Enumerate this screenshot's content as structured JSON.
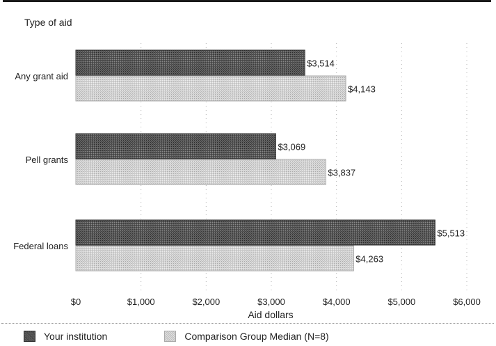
{
  "chart_data": {
    "type": "bar",
    "orientation": "horizontal",
    "title": "Type of aid",
    "xlabel": "Aid dollars",
    "categories": [
      "Any grant aid",
      "Pell grants",
      "Federal loans"
    ],
    "series": [
      {
        "name": "Your institution",
        "values": [
          3514,
          3069,
          5513
        ],
        "labels": [
          "$3,514",
          "$3,069",
          "$5,513"
        ],
        "color": "#555555"
      },
      {
        "name": "Comparison Group Median (N=8)",
        "values": [
          4143,
          3837,
          4263
        ],
        "labels": [
          "$4,143",
          "$3,837",
          "$4,263"
        ],
        "color": "#cfcfcf"
      }
    ],
    "xlim": [
      0,
      6000
    ],
    "x_ticks": [
      0,
      1000,
      2000,
      3000,
      4000,
      5000,
      6000
    ],
    "x_tick_labels": [
      "$0",
      "$1,000",
      "$2,000",
      "$3,000",
      "$4,000",
      "$5,000",
      "$6,000"
    ],
    "grid": "dotted vertical",
    "legend": "bottom"
  },
  "legend": {
    "items": [
      "Your institution",
      "Comparison Group Median (N=8)"
    ]
  }
}
